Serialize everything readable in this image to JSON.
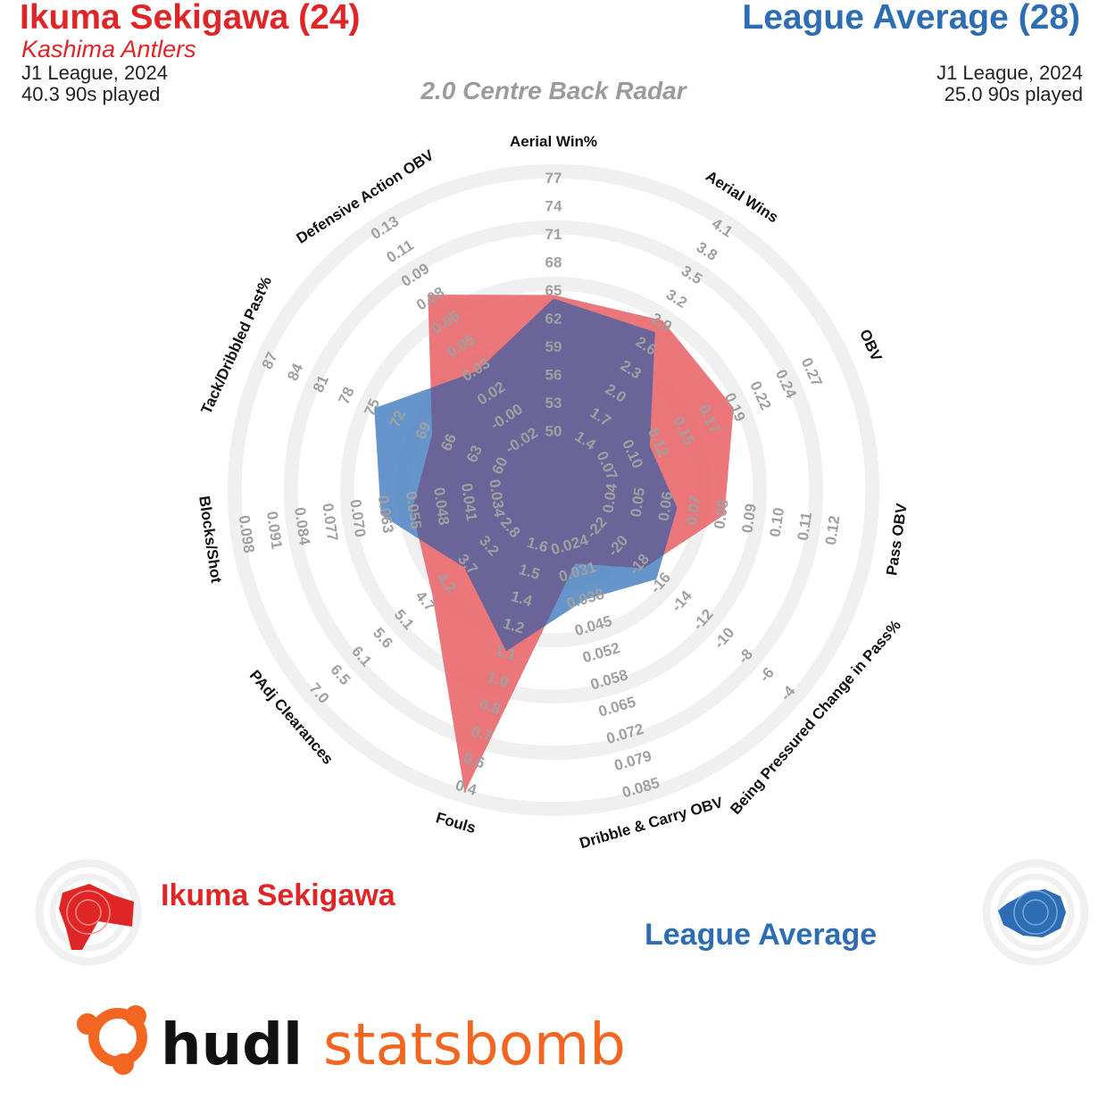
{
  "header": {
    "player_name": "Ikuma Sekigawa (24)",
    "player_team": "Kashima Antlers",
    "player_league": "J1 League, 2024",
    "player_minutes": "40.3 90s played",
    "comparison_name": "League Average (28)",
    "comparison_league": "J1 League, 2024",
    "comparison_minutes": "25.0 90s played",
    "subtitle": "2.0 Centre Back Radar"
  },
  "legend": {
    "player_label": "Ikuma Sekigawa",
    "comparison_label": "League Average"
  },
  "logo": {
    "text_a": "hudl",
    "text_b": "statsbomb"
  },
  "colors": {
    "player": "#e02527",
    "player_fill": "#e9686b",
    "comparison": "#2d6db4",
    "comparison_fill": "#4a82c2",
    "overlap": "#6a6499",
    "ring": "#f0f0f0",
    "tick_label": "#a0a0a0",
    "logo_orange": "#f26622"
  },
  "chart_data": {
    "type": "radar",
    "title": "2.0 Centre Back Radar",
    "metrics": [
      {
        "name": "Aerial Win%",
        "ticks": [
          "50",
          "53",
          "56",
          "59",
          "62",
          "65",
          "68",
          "71",
          "74",
          "77"
        ]
      },
      {
        "name": "Aerial Wins",
        "ticks": [
          "1.4",
          "1.7",
          "2.0",
          "2.3",
          "2.6",
          "2.9",
          "3.2",
          "3.5",
          "3.8",
          "4.1"
        ]
      },
      {
        "name": "OBV",
        "ticks": [
          "0.07",
          "0.10",
          "0.12",
          "0.15",
          "0.17",
          "0.19",
          "0.22",
          "0.24",
          "0.27"
        ]
      },
      {
        "name": "Pass OBV",
        "ticks": [
          "0.04",
          "0.05",
          "0.06",
          "0.07",
          "0.08",
          "0.09",
          "0.10",
          "0.11",
          "0.12"
        ]
      },
      {
        "name": "Being Pressured Change in Pass%",
        "ticks": [
          "-22",
          "-20",
          "-18",
          "-16",
          "-14",
          "-12",
          "-10",
          "-8",
          "-6",
          "-4"
        ]
      },
      {
        "name": "Dribble & Carry OBV",
        "ticks": [
          "0.024",
          "0.031",
          "0.038",
          "0.045",
          "0.052",
          "0.058",
          "0.065",
          "0.072",
          "0.079",
          "0.085"
        ]
      },
      {
        "name": "Fouls",
        "ticks": [
          "1.6",
          "1.5",
          "1.4",
          "1.2",
          "1.1",
          "1.0",
          "0.8",
          "0.7",
          "0.6",
          "0.4"
        ]
      },
      {
        "name": "PAdj Clearances",
        "ticks": [
          "2.8",
          "3.2",
          "3.7",
          "4.2",
          "4.7",
          "5.1",
          "5.6",
          "6.1",
          "6.5",
          "7.0"
        ]
      },
      {
        "name": "Blocks/Shot",
        "ticks": [
          "0.034",
          "0.041",
          "0.048",
          "0.055",
          "0.063",
          "0.070",
          "0.077",
          "0.084",
          "0.091",
          "0.098"
        ]
      },
      {
        "name": "Tack/Dribbled Past%",
        "ticks": [
          "60",
          "63",
          "66",
          "69",
          "72",
          "75",
          "78",
          "81",
          "84",
          "87"
        ]
      },
      {
        "name": "Defensive Action OBV",
        "ticks": [
          "-0.02",
          "-0.00",
          "0.02",
          "0.03",
          "0.05",
          "0.06",
          "0.08",
          "0.09",
          "0.11",
          "0.13"
        ]
      }
    ],
    "series": [
      {
        "name": "Ikuma Sekigawa",
        "values": [
          65.3,
          3.0,
          0.2,
          0.083,
          -17.2,
          0.03,
          0.35,
          4.6,
          0.057,
          68.7,
          0.087
        ]
      },
      {
        "name": "League Average",
        "values": [
          64.9,
          2.85,
          0.118,
          0.066,
          -16.0,
          0.039,
          1.05,
          3.9,
          0.065,
          75.5,
          0.033
        ]
      }
    ]
  }
}
